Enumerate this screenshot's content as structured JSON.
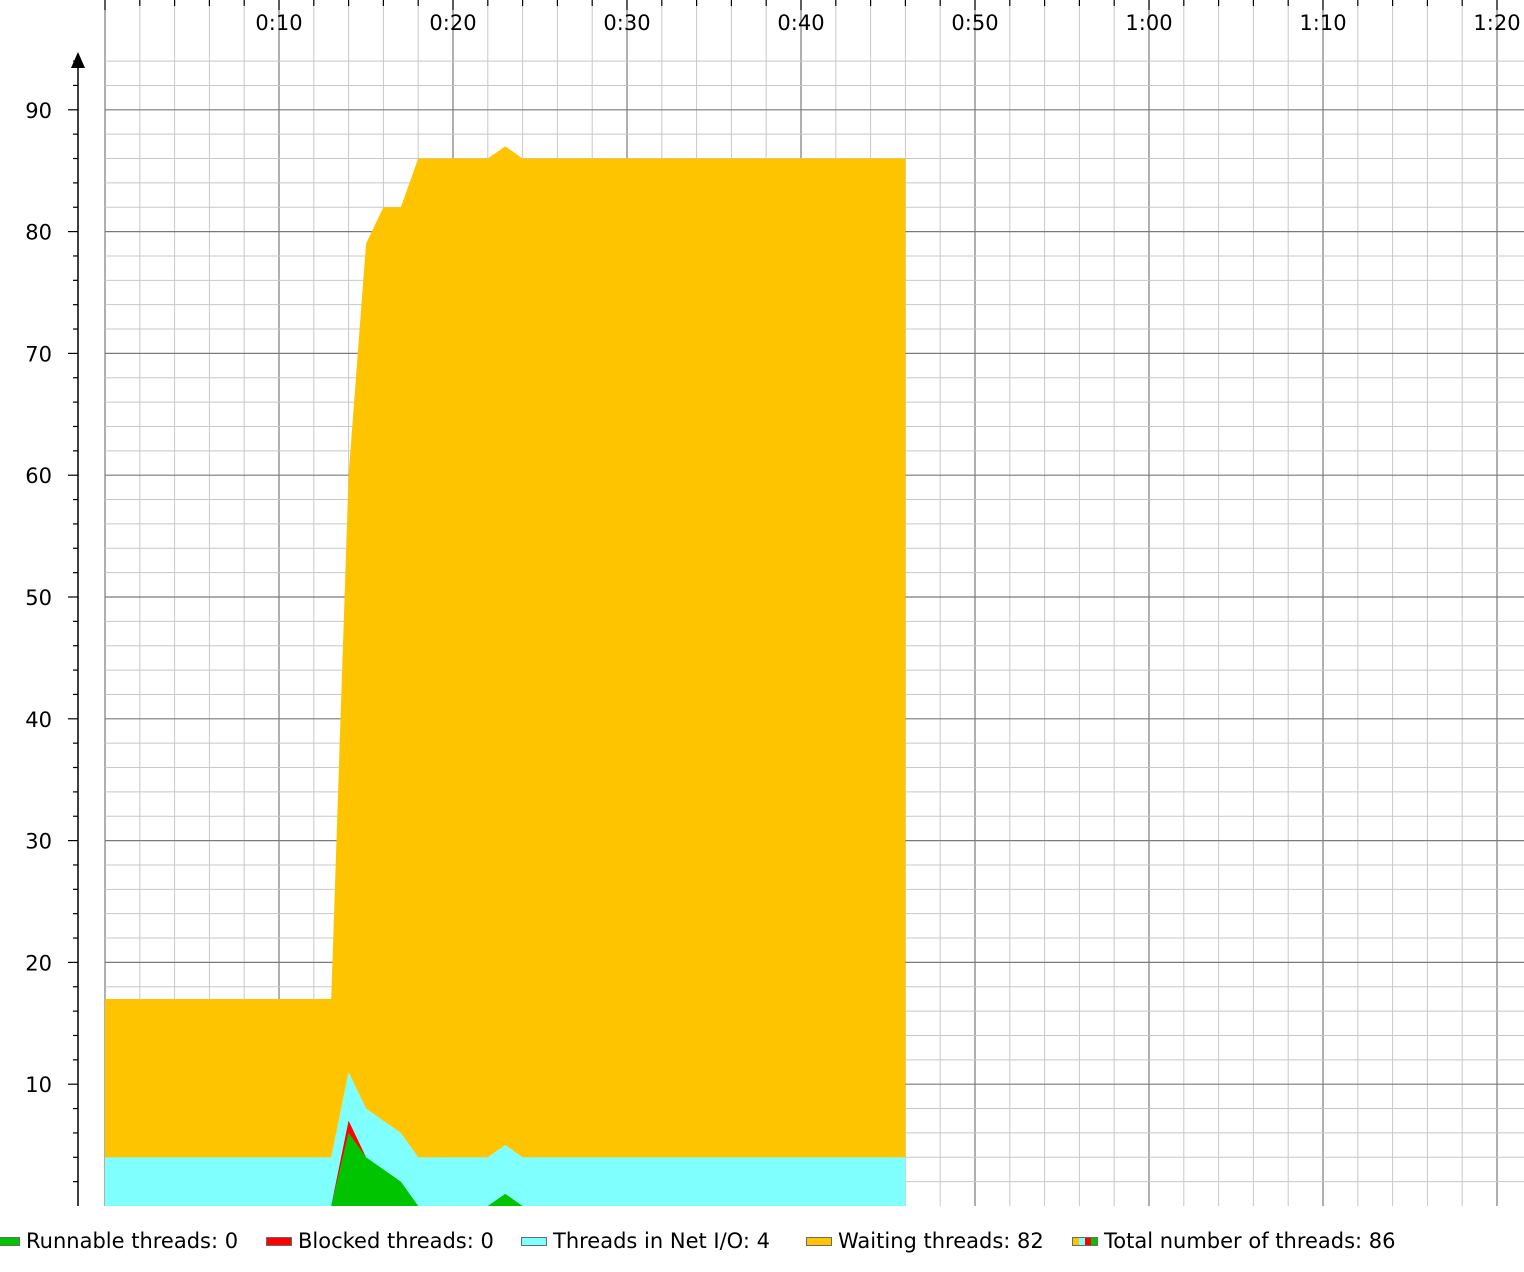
{
  "colors": {
    "runnable": "#00c400",
    "blocked": "#ff0000",
    "net_io": "#80ffff",
    "waiting": "#ffc400",
    "grid_major": "#7a7a7a",
    "grid_minor": "#c8c8c8"
  },
  "legend": {
    "runnable": "Runnable threads: 0",
    "blocked": "Blocked threads: 0",
    "net_io": "Threads in Net I/O: 4",
    "waiting": "Waiting threads: 82",
    "total": "Total number of threads: 86"
  },
  "chart_data": {
    "type": "area",
    "stacked": true,
    "x_unit": "seconds",
    "xlim": [
      0,
      81.5
    ],
    "ylim": [
      0,
      95
    ],
    "x_tick_labels": [
      "0:10",
      "0:20",
      "0:30",
      "0:40",
      "0:50",
      "1:00",
      "1:10",
      "1:20"
    ],
    "x_tick_values": [
      10,
      20,
      30,
      40,
      50,
      60,
      70,
      80
    ],
    "y_tick_labels": [
      "10",
      "20",
      "30",
      "40",
      "50",
      "60",
      "70",
      "80",
      "90"
    ],
    "y_tick_values": [
      10,
      20,
      30,
      40,
      50,
      60,
      70,
      80,
      90
    ],
    "grid": true,
    "legend_position": "bottom",
    "x": [
      0,
      13,
      14,
      15,
      16,
      17,
      18,
      22,
      23,
      24,
      46
    ],
    "series": [
      {
        "name": "Runnable threads",
        "color": "#00c400",
        "values": [
          0,
          0,
          6,
          4,
          3,
          2,
          0,
          0,
          1,
          0,
          0
        ]
      },
      {
        "name": "Blocked threads",
        "color": "#ff0000",
        "values": [
          0,
          0,
          1,
          0,
          0,
          0,
          0,
          0,
          0,
          0,
          0
        ]
      },
      {
        "name": "Threads in Net I/O",
        "color": "#80ffff",
        "values": [
          4,
          4,
          4,
          4,
          4,
          4,
          4,
          4,
          4,
          4,
          4
        ]
      },
      {
        "name": "Waiting threads",
        "color": "#ffc400",
        "values": [
          13,
          13,
          49,
          71,
          75,
          76,
          82,
          82,
          82,
          82,
          82
        ]
      }
    ],
    "totals": [
      17,
      17,
      60,
      79,
      82,
      82,
      86,
      86,
      87,
      86,
      86
    ]
  }
}
